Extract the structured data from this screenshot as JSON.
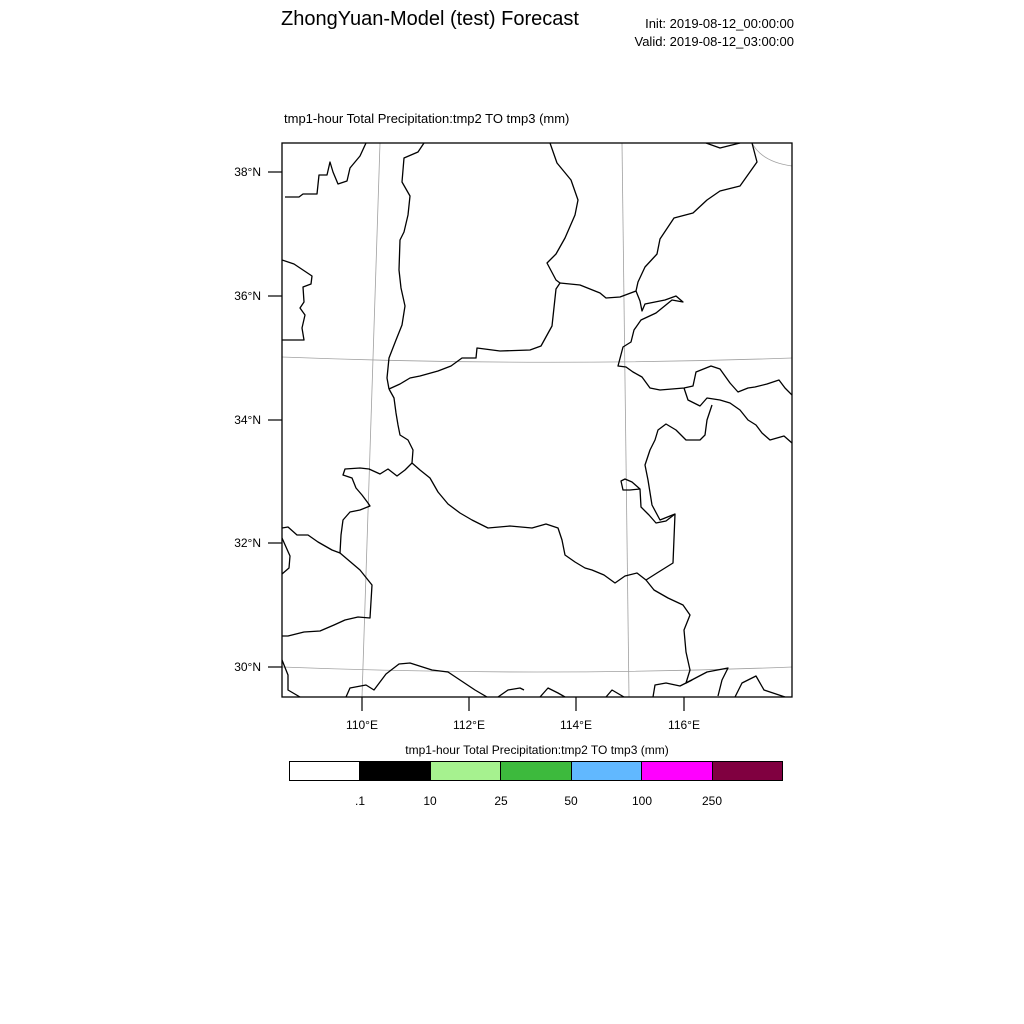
{
  "header": {
    "title": "ZhongYuan-Model (test) Forecast",
    "init": "Init: 2019-08-12_00:00:00",
    "valid": "Valid: 2019-08-12_03:00:00"
  },
  "map": {
    "field_title": "tmp1-hour Total Precipitation:tmp2 TO tmp3   (mm)",
    "lat_labels": [
      "38°N",
      "36°N",
      "34°N",
      "32°N",
      "30°N"
    ],
    "lon_labels": [
      "110°E",
      "112°E",
      "114°E",
      "116°E"
    ],
    "boundary_color": "#000000",
    "gridline_color": "#a0a0a0"
  },
  "colorbar": {
    "title": "tmp1-hour Total Precipitation:tmp2 TO tmp3  (mm)",
    "colors": [
      "#ffffff",
      "#000000",
      "#a6f28f",
      "#3dba3d",
      "#61b8ff",
      "#ff00ff",
      "#800040"
    ],
    "labels": [
      ".1",
      "10",
      "25",
      "50",
      "100",
      "250"
    ]
  }
}
